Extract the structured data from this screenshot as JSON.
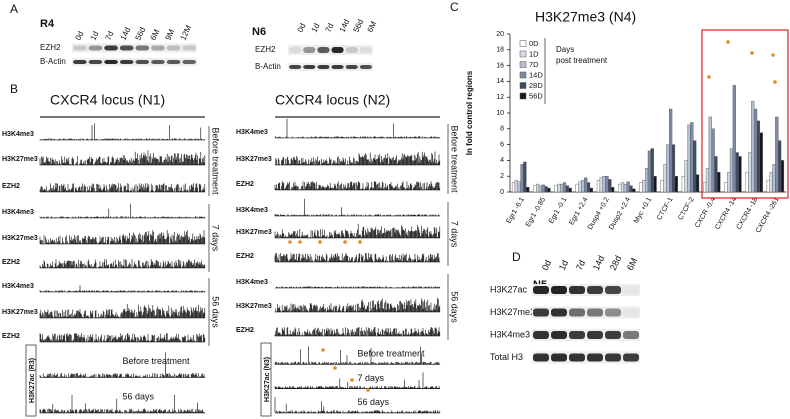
{
  "panel_a": {
    "label": "A",
    "r4": {
      "title": "R4",
      "lanes": [
        "0d",
        "1d",
        "7d",
        "14d",
        "56d",
        "6M",
        "9M",
        "12M"
      ],
      "rows": [
        "EZH2",
        "B-Actin"
      ]
    },
    "n6": {
      "title": "N6",
      "lanes": [
        "0d",
        "1d",
        "7d",
        "14d",
        "56d",
        "6M"
      ],
      "rows": [
        "EZH2",
        "B-Actin"
      ]
    }
  },
  "panel_b": {
    "label": "B",
    "n1": {
      "title": "CXCR4 locus (N1)",
      "groups": [
        {
          "label": "Before treatment",
          "tracks": [
            "H3K4me3",
            "H3K27me3",
            "EZH2"
          ]
        },
        {
          "label": "7 days",
          "tracks": [
            "H3K4me3",
            "H3K27me3",
            "EZH2"
          ]
        },
        {
          "label": "56 days",
          "tracks": [
            "H3K4me3",
            "H3K27me3",
            "EZH2"
          ]
        }
      ],
      "ac": {
        "label": "H3K27ac (R3)",
        "tracks": [
          "Before treatment",
          "56 days"
        ]
      }
    },
    "n2": {
      "title": "CXCR4 locus (N2)",
      "groups": [
        {
          "label": "Before treatment",
          "tracks": [
            "H3K4me3",
            "H3K27me3",
            "EZH2"
          ]
        },
        {
          "label": "7 days",
          "tracks": [
            "H3K4me3",
            "H3K27me3",
            "EZH2"
          ]
        },
        {
          "label": "56 days",
          "tracks": [
            "H3K4me3",
            "H3K27me3",
            "EZH2"
          ]
        }
      ],
      "ac": {
        "label": "H3K27ac (N3)",
        "tracks": [
          "Before treatment",
          "7 days",
          "56 days"
        ]
      }
    }
  },
  "panel_c_label": "C",
  "chart_data": {
    "type": "bar",
    "title": "H3K27me3 (N4)",
    "y_label": "In fold control regions",
    "legend_title": "Days post treatment",
    "categories": [
      "Egr1 -6.1",
      "Egr1 -0.85",
      "Egr1 -0.1",
      "Egr1 +2.4",
      "Dusp4 +0.2",
      "Dusp2 +2.4",
      "Myc +0.1",
      "CTCF-1",
      "CTCF-2",
      "CXCR -0.4",
      "CXCR4 -14",
      "CXCR4 -18",
      "CXCR4 -261"
    ],
    "series": [
      {
        "name": "0D",
        "color": "#ffffff",
        "values": [
          1.2,
          0.8,
          0.8,
          1.0,
          1.5,
          1.0,
          1.2,
          1.5,
          2.0,
          1.2,
          1.2,
          2.5,
          1.5
        ]
      },
      {
        "name": "1D",
        "color": "#d5dbe6",
        "values": [
          1.5,
          1.0,
          1.0,
          1.3,
          1.8,
          1.2,
          1.5,
          3.5,
          4.0,
          3.0,
          2.5,
          5.0,
          2.5
        ]
      },
      {
        "name": "7D",
        "color": "#b4bfd2",
        "values": [
          1.3,
          0.8,
          1.0,
          1.5,
          2.0,
          1.0,
          3.0,
          6.0,
          8.5,
          9.5,
          5.5,
          11.5,
          3.5
        ]
      },
      {
        "name": "14D",
        "color": "#7f8ba6",
        "values": [
          3.5,
          0.9,
          1.2,
          1.8,
          2.0,
          1.3,
          5.2,
          10.5,
          8.8,
          8.0,
          13.5,
          10.5,
          9.5
        ]
      },
      {
        "name": "28D",
        "color": "#3f4a63",
        "values": [
          3.8,
          0.7,
          0.8,
          1.2,
          1.6,
          0.8,
          5.5,
          6.0,
          6.5,
          4.5,
          5.0,
          9.0,
          6.5
        ]
      },
      {
        "name": "56D",
        "color": "#15181f",
        "values": [
          0.6,
          0.5,
          0.5,
          0.5,
          0.6,
          0.4,
          2.0,
          2.0,
          2.2,
          2.5,
          4.5,
          7.5,
          4.0
        ]
      }
    ],
    "ylim": [
      0,
      20
    ],
    "yticks": [
      0,
      2,
      4,
      6,
      8,
      10,
      12,
      14,
      16,
      18,
      20
    ],
    "grid": false
  },
  "panel_d": {
    "label": "D",
    "title": "N5",
    "lanes": [
      "0d",
      "1d",
      "7d",
      "14d",
      "28d",
      "6M"
    ],
    "rows": [
      "H3K27ac",
      "H3K27me3",
      "H3K4me3",
      "Total H3"
    ]
  }
}
